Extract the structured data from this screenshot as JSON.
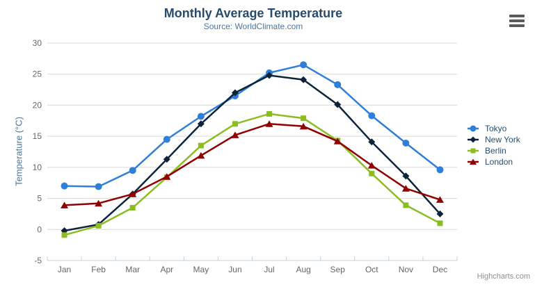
{
  "chart": {
    "title": "Monthly Average Temperature",
    "subtitle": "Source: WorldClimate.com",
    "credits": "Highcharts.com"
  },
  "icons": {
    "export_menu": "hamburger-icon"
  },
  "colors": {
    "title": "#274b6d",
    "subtitle": "#4d759e",
    "axis_title": "#4d759e",
    "axis_label": "#666666",
    "gridline": "#d8d8d8",
    "axis_line": "#c0d0e0",
    "legend_text": "#274b6d",
    "credits": "#8d8d8d"
  },
  "chart_data": {
    "type": "line",
    "title": "Monthly Average Temperature",
    "subtitle": "Source: WorldClimate.com",
    "xlabel": "",
    "ylabel": "Temperature (°C)",
    "ylim": [
      -5,
      30
    ],
    "ytick_step": 5,
    "grid": true,
    "legend_position": "right",
    "categories": [
      "Jan",
      "Feb",
      "Mar",
      "Apr",
      "May",
      "Jun",
      "Jul",
      "Aug",
      "Sep",
      "Oct",
      "Nov",
      "Dec"
    ],
    "series": [
      {
        "name": "Tokyo",
        "color": "#2f7ed8",
        "marker": "circle",
        "values": [
          7.0,
          6.9,
          9.5,
          14.5,
          18.2,
          21.5,
          25.2,
          26.5,
          23.3,
          18.3,
          13.9,
          9.6
        ]
      },
      {
        "name": "New York",
        "color": "#0d233a",
        "marker": "diamond",
        "values": [
          -0.2,
          0.8,
          5.7,
          11.3,
          17.0,
          22.0,
          24.8,
          24.1,
          20.1,
          14.1,
          8.6,
          2.5
        ]
      },
      {
        "name": "Berlin",
        "color": "#8bbc21",
        "marker": "square",
        "values": [
          -0.9,
          0.6,
          3.5,
          8.4,
          13.5,
          17.0,
          18.6,
          17.9,
          14.3,
          9.0,
          3.9,
          1.0
        ]
      },
      {
        "name": "London",
        "color": "#910000",
        "marker": "triangle",
        "values": [
          3.9,
          4.2,
          5.7,
          8.5,
          11.9,
          15.2,
          17.0,
          16.6,
          14.2,
          10.3,
          6.6,
          4.8
        ]
      }
    ]
  }
}
